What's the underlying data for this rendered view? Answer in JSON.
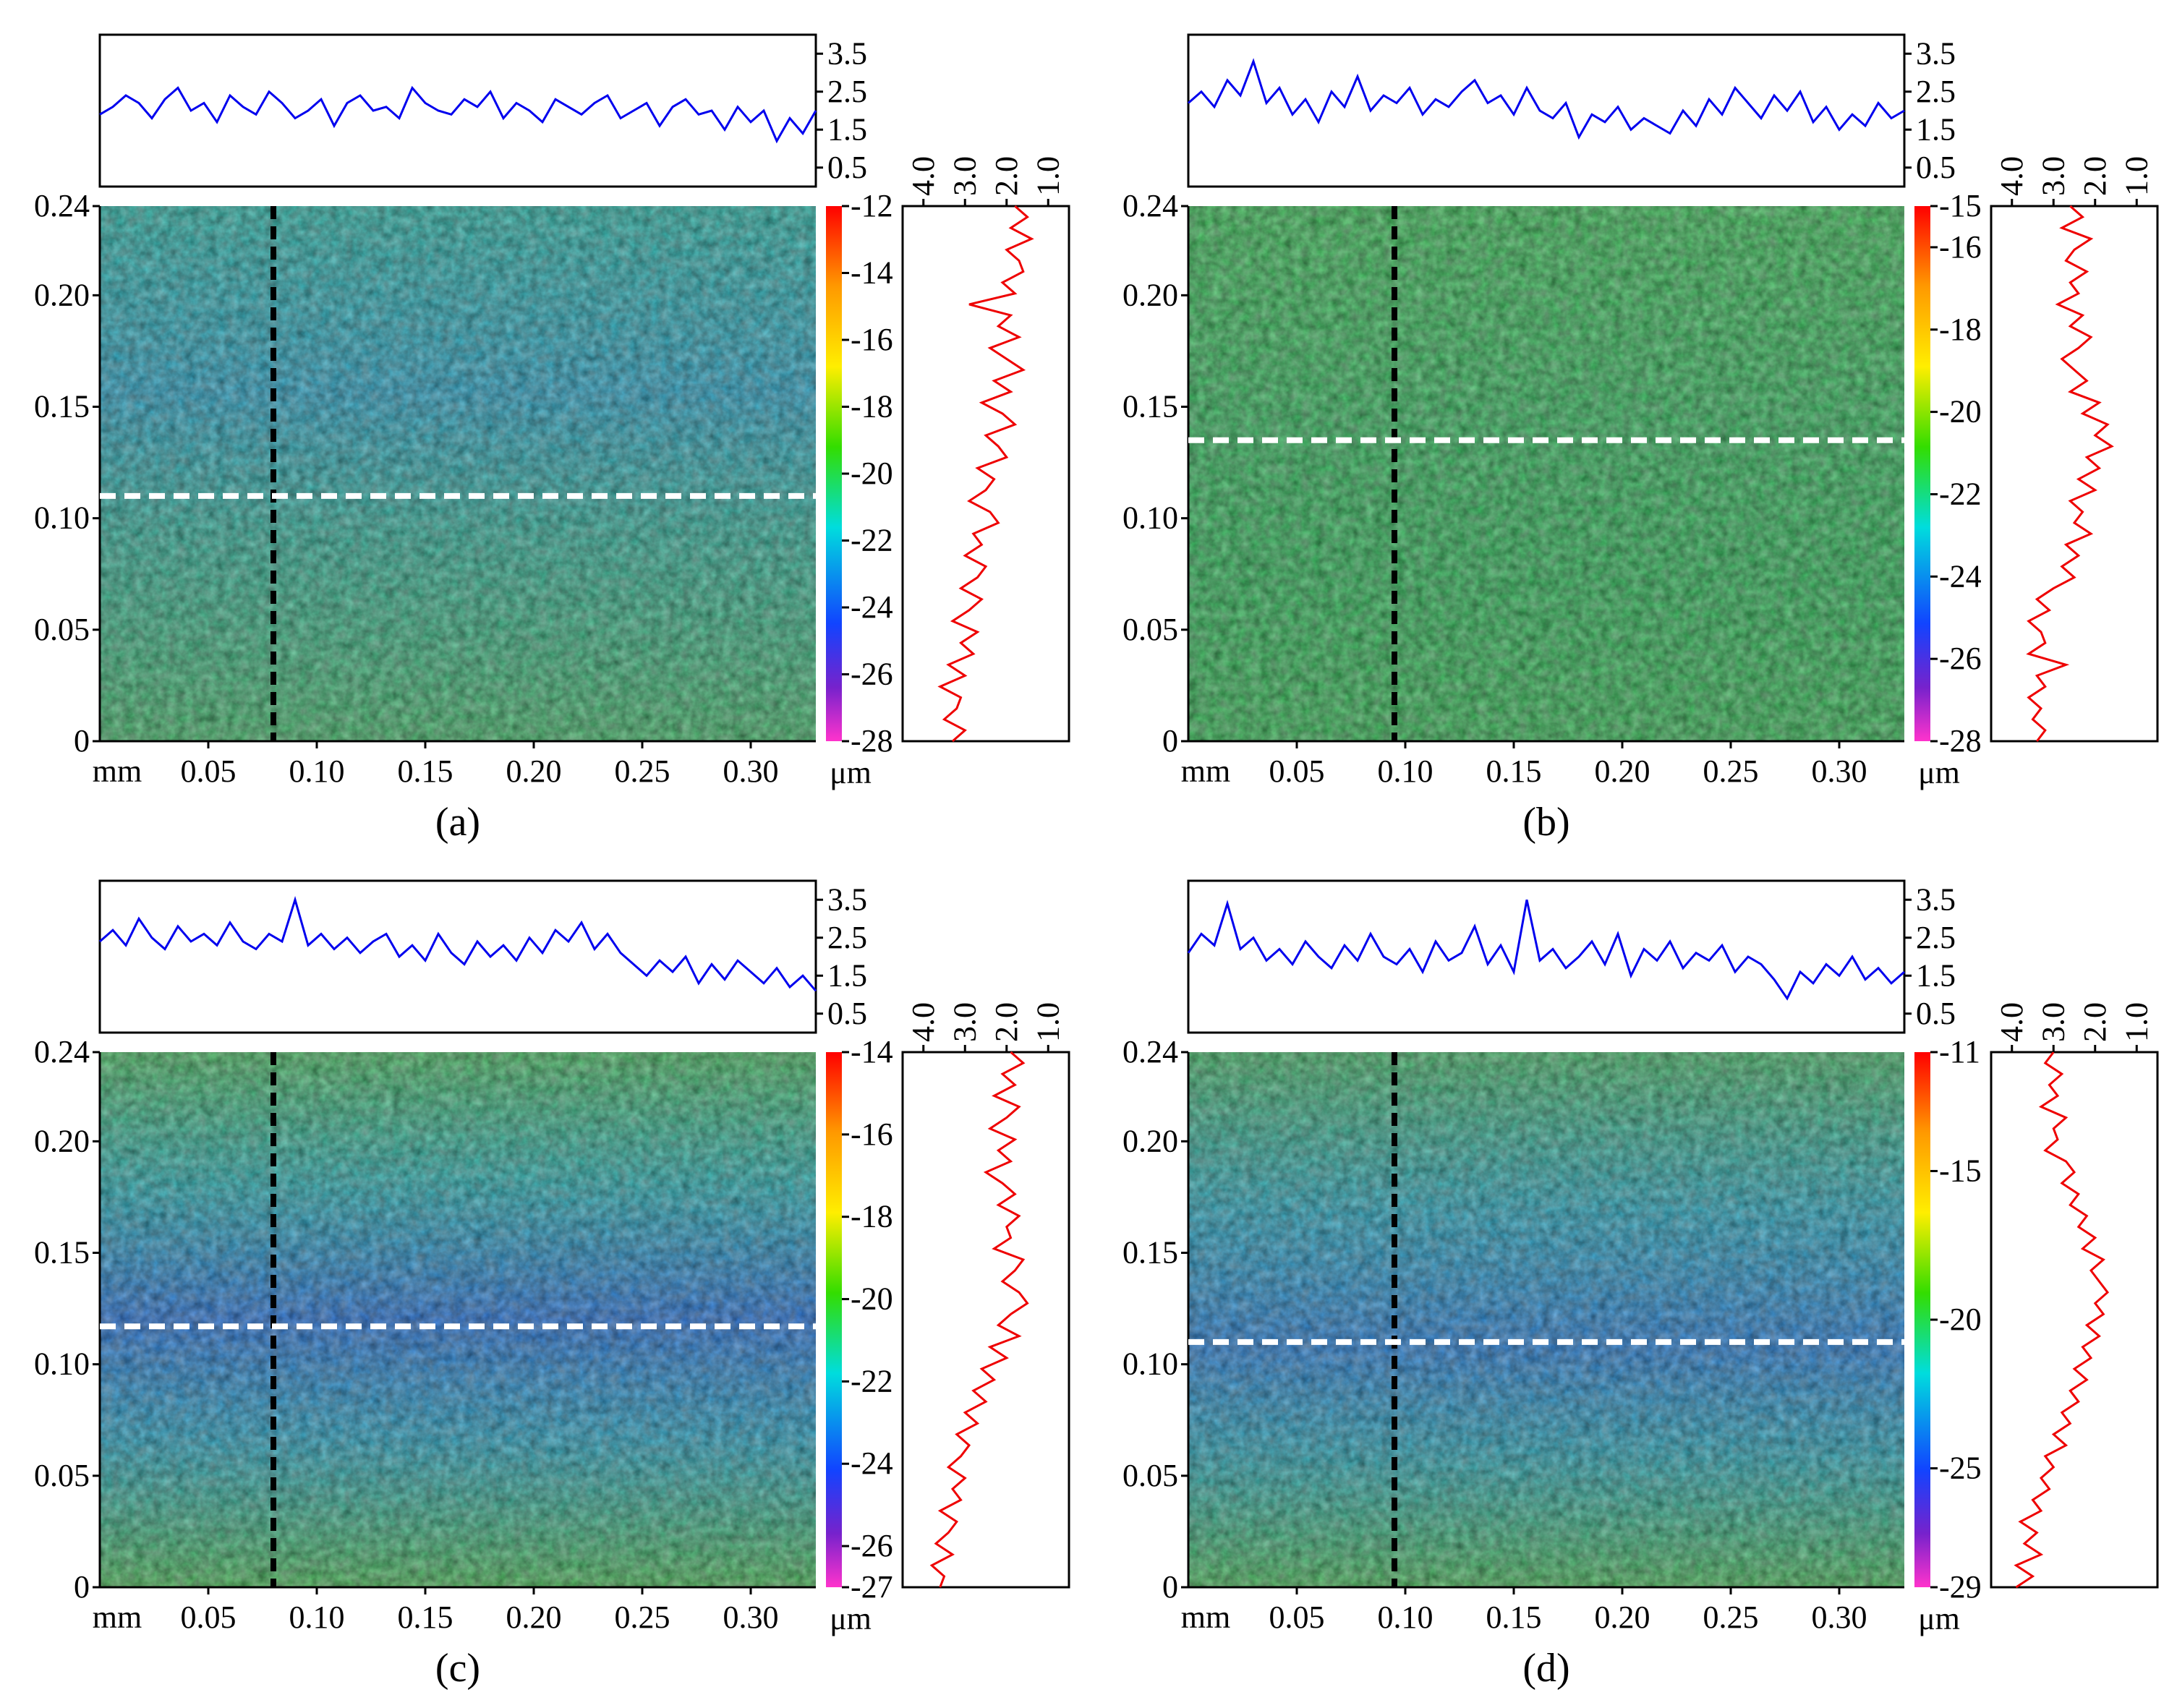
{
  "panels": [
    {
      "label": "(a)",
      "colorbar_ticks": [
        "-12",
        "-14",
        "-16",
        "-18",
        "-20",
        "-22",
        "-24",
        "-26",
        "-28"
      ],
      "dashed_line_positions": {
        "vertical_x_mm": 0.08,
        "horizontal_y_mm": 0.11
      },
      "profile_x": {
        "axis_ticks": [
          "3.5",
          "2.5",
          "1.5",
          "0.5"
        ],
        "values": [
          1.9,
          2.1,
          2.4,
          2.2,
          1.8,
          2.3,
          2.6,
          2.0,
          2.2,
          1.7,
          2.4,
          2.1,
          1.9,
          2.5,
          2.2,
          1.8,
          2.0,
          2.3,
          1.6,
          2.2,
          2.4,
          2.0,
          2.1,
          1.8,
          2.6,
          2.2,
          2.0,
          1.9,
          2.3,
          2.1,
          2.5,
          1.8,
          2.2,
          2.0,
          1.7,
          2.3,
          2.1,
          1.9,
          2.2,
          2.4,
          1.8,
          2.0,
          2.2,
          1.6,
          2.1,
          2.3,
          1.9,
          2.0,
          1.5,
          2.1,
          1.7,
          2.0,
          1.2,
          1.8,
          1.4,
          2.0
        ]
      },
      "profile_y": {
        "axis_ticks": [
          "4.0",
          "3.0",
          "2.0",
          "1.0"
        ],
        "values": [
          1.8,
          1.5,
          1.9,
          1.4,
          2.0,
          1.7,
          1.6,
          2.1,
          1.8,
          2.9,
          1.9,
          2.2,
          1.7,
          2.4,
          2.0,
          1.6,
          2.3,
          1.9,
          2.6,
          2.1,
          1.8,
          2.5,
          2.2,
          2.0,
          2.7,
          2.3,
          2.5,
          2.9,
          2.4,
          2.2,
          2.8,
          2.6,
          3.0,
          2.5,
          2.7,
          3.1,
          2.6,
          2.9,
          3.3,
          2.7,
          3.1,
          2.8,
          3.4,
          3.0,
          3.6,
          3.1,
          3.2,
          3.5,
          3.0,
          3.3
        ]
      }
    },
    {
      "label": "(b)",
      "colorbar_ticks": [
        "-15",
        "-16",
        "-18",
        "-20",
        "-22",
        "-24",
        "-26",
        "-28"
      ],
      "dashed_line_positions": {
        "vertical_x_mm": 0.095,
        "horizontal_y_mm": 0.135
      },
      "profile_x": {
        "axis_ticks": [
          "3.5",
          "2.5",
          "1.5",
          "0.5"
        ],
        "values": [
          2.2,
          2.5,
          2.1,
          2.8,
          2.4,
          3.3,
          2.2,
          2.6,
          1.9,
          2.3,
          1.7,
          2.5,
          2.1,
          2.9,
          2.0,
          2.4,
          2.2,
          2.6,
          1.9,
          2.3,
          2.1,
          2.5,
          2.8,
          2.2,
          2.4,
          1.9,
          2.6,
          2.0,
          1.8,
          2.2,
          1.3,
          1.9,
          1.7,
          2.1,
          1.5,
          1.8,
          1.6,
          1.4,
          2.0,
          1.6,
          2.3,
          1.9,
          2.6,
          2.2,
          1.8,
          2.4,
          2.0,
          2.5,
          1.7,
          2.1,
          1.5,
          1.9,
          1.6,
          2.2,
          1.8,
          2.0
        ]
      },
      "profile_y": {
        "axis_ticks": [
          "4.0",
          "3.0",
          "2.0",
          "1.0"
        ],
        "values": [
          2.6,
          2.3,
          2.8,
          2.1,
          2.5,
          2.7,
          2.2,
          2.6,
          2.4,
          2.9,
          2.3,
          2.6,
          2.1,
          2.4,
          2.8,
          2.5,
          2.2,
          2.6,
          1.9,
          2.3,
          1.7,
          2.0,
          1.6,
          2.2,
          1.9,
          2.4,
          2.0,
          2.6,
          2.3,
          2.5,
          2.1,
          2.7,
          2.4,
          2.8,
          2.5,
          3.0,
          3.4,
          3.1,
          3.6,
          3.3,
          3.2,
          3.6,
          2.7,
          3.4,
          3.2,
          3.6,
          3.3,
          3.5,
          3.2,
          3.4
        ]
      }
    },
    {
      "label": "(c)",
      "colorbar_ticks": [
        "-14",
        "-16",
        "-18",
        "-20",
        "-22",
        "-24",
        "-26",
        "-27"
      ],
      "dashed_line_positions": {
        "vertical_x_mm": 0.08,
        "horizontal_y_mm": 0.117
      },
      "profile_x": {
        "axis_ticks": [
          "3.5",
          "2.5",
          "1.5",
          "0.5"
        ],
        "values": [
          2.4,
          2.7,
          2.3,
          3.0,
          2.5,
          2.2,
          2.8,
          2.4,
          2.6,
          2.3,
          2.9,
          2.4,
          2.2,
          2.6,
          2.4,
          3.5,
          2.3,
          2.6,
          2.2,
          2.5,
          2.1,
          2.4,
          2.6,
          2.0,
          2.3,
          1.9,
          2.6,
          2.1,
          1.8,
          2.4,
          2.0,
          2.3,
          1.9,
          2.5,
          2.1,
          2.7,
          2.4,
          2.9,
          2.2,
          2.6,
          2.1,
          1.8,
          1.5,
          1.9,
          1.6,
          2.0,
          1.3,
          1.8,
          1.4,
          1.9,
          1.6,
          1.3,
          1.7,
          1.2,
          1.5,
          1.1
        ]
      },
      "profile_y": {
        "axis_ticks": [
          "4.0",
          "3.0",
          "2.0",
          "1.0"
        ],
        "values": [
          1.9,
          1.6,
          2.1,
          1.8,
          2.3,
          1.7,
          2.0,
          2.4,
          1.8,
          2.2,
          1.9,
          2.5,
          2.1,
          1.8,
          2.2,
          1.7,
          2.0,
          1.9,
          2.3,
          1.6,
          1.8,
          2.1,
          1.7,
          1.5,
          1.9,
          2.2,
          1.7,
          2.4,
          2.0,
          2.6,
          2.3,
          2.8,
          2.5,
          3.0,
          2.7,
          3.2,
          2.9,
          3.1,
          3.4,
          3.0,
          3.3,
          3.1,
          3.6,
          3.2,
          3.4,
          3.7,
          3.3,
          3.8,
          3.5,
          3.6
        ]
      }
    },
    {
      "label": "(d)",
      "colorbar_ticks": [
        "-11",
        "-15",
        "-20",
        "-25",
        "-29"
      ],
      "dashed_line_positions": {
        "vertical_x_mm": 0.095,
        "horizontal_y_mm": 0.11
      },
      "profile_x": {
        "axis_ticks": [
          "3.5",
          "2.5",
          "1.5",
          "0.5"
        ],
        "values": [
          2.1,
          2.6,
          2.3,
          3.4,
          2.2,
          2.5,
          1.9,
          2.2,
          1.8,
          2.4,
          2.0,
          1.7,
          2.3,
          1.9,
          2.6,
          2.0,
          1.8,
          2.2,
          1.6,
          2.4,
          1.9,
          2.1,
          2.8,
          1.8,
          2.3,
          1.6,
          3.5,
          1.9,
          2.2,
          1.7,
          2.0,
          2.4,
          1.8,
          2.6,
          1.5,
          2.2,
          1.9,
          2.4,
          1.7,
          2.1,
          1.9,
          2.3,
          1.6,
          2.0,
          1.8,
          1.4,
          0.9,
          1.6,
          1.3,
          1.8,
          1.5,
          2.0,
          1.4,
          1.7,
          1.3,
          1.6
        ]
      },
      "profile_y": {
        "axis_ticks": [
          "4.0",
          "3.0",
          "2.0",
          "1.0"
        ],
        "values": [
          3.0,
          3.2,
          2.8,
          3.1,
          2.9,
          3.3,
          2.7,
          3.0,
          2.9,
          3.2,
          2.7,
          2.5,
          2.8,
          2.4,
          2.6,
          2.2,
          2.4,
          2.0,
          2.3,
          1.8,
          2.1,
          1.9,
          1.7,
          2.0,
          1.8,
          2.2,
          1.9,
          2.3,
          2.1,
          2.5,
          2.2,
          2.6,
          2.4,
          2.8,
          2.6,
          3.0,
          2.7,
          3.2,
          3.0,
          3.3,
          3.1,
          3.5,
          3.3,
          3.8,
          3.4,
          3.7,
          3.3,
          3.9,
          3.5,
          3.9
        ]
      }
    }
  ],
  "map_y_ticks": [
    "0.24",
    "0.20",
    "0.15",
    "0.10",
    "0.05",
    "0"
  ],
  "map_x_ticks": [
    "mm",
    "0.05",
    "0.10",
    "0.15",
    "0.20",
    "0.25",
    "0.30"
  ],
  "colorbar_unit": "μm",
  "colors": {
    "profile_x_line": "#0000ee",
    "profile_y_line": "#ee0000",
    "frame": "#000000"
  }
}
